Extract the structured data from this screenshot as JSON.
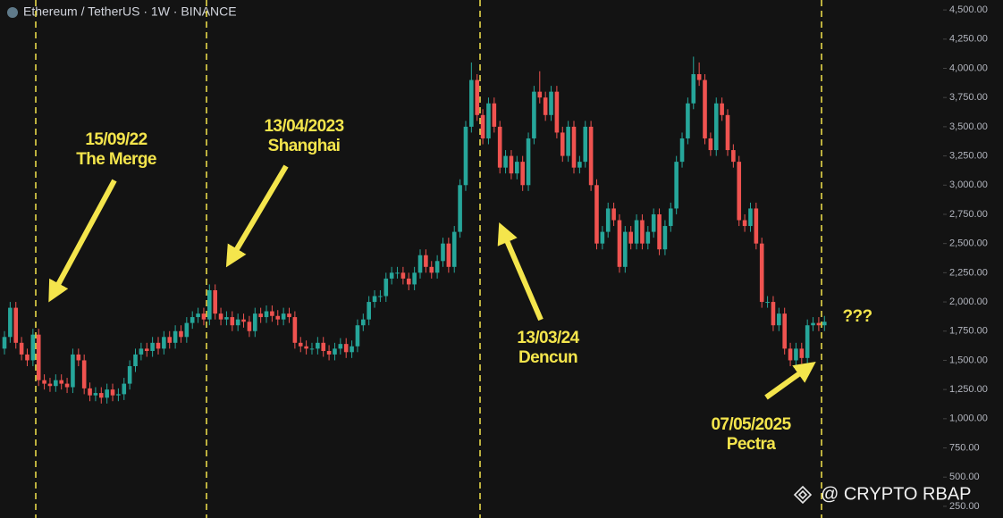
{
  "chart_data": {
    "type": "candlestick",
    "title": "Ethereum / TetherUS · 1W · BINANCE",
    "up_color": "#26a69a",
    "down_color": "#ef5350",
    "open": [
      1600,
      1700,
      1950,
      1650,
      1550,
      1500,
      1720,
      1330,
      1300,
      1280,
      1330,
      1300,
      1270,
      1550,
      1500,
      1260,
      1200,
      1220,
      1180,
      1250,
      1200,
      1210,
      1300,
      1450,
      1550,
      1600,
      1580,
      1650,
      1600,
      1700,
      1650,
      1750,
      1700,
      1820,
      1870,
      1900,
      1850,
      2100,
      1900,
      1850,
      1870,
      1800,
      1850,
      1830,
      1750,
      1900,
      1870,
      1920,
      1880,
      1850,
      1900,
      1870,
      1650,
      1620,
      1600,
      1600,
      1650,
      1580,
      1550,
      1600,
      1640,
      1570,
      1620,
      1800,
      1850,
      2000,
      2050,
      2050,
      2200,
      2250,
      2250,
      2200,
      2150,
      2250,
      2400,
      2300,
      2250,
      2350,
      2500,
      2300,
      2600,
      3000,
      3500,
      3900,
      3600,
      3400,
      3700,
      3500,
      3150,
      3250,
      3100,
      3200,
      3000,
      3400,
      3800,
      3750,
      3600,
      3800,
      3450,
      3250,
      3500,
      3150,
      3200,
      3500,
      3000,
      2500,
      2600,
      2800,
      2700,
      2300,
      2600,
      2500,
      2700,
      2500,
      2600,
      2750,
      2450,
      2650,
      2800,
      3200,
      3400,
      3700,
      3950,
      3900,
      3400,
      3300,
      3700,
      3600,
      3300,
      3200,
      2700,
      2650,
      2800,
      2500,
      2000,
      2000,
      1800,
      1900,
      1600,
      1500,
      1600,
      1520,
      1800,
      1820,
      1800
    ],
    "high": [
      1750,
      2000,
      2000,
      1700,
      1600,
      1770,
      1770,
      1380,
      1350,
      1380,
      1380,
      1350,
      1600,
      1600,
      1550,
      1310,
      1270,
      1270,
      1300,
      1300,
      1260,
      1350,
      1500,
      1600,
      1650,
      1650,
      1700,
      1700,
      1750,
      1750,
      1800,
      1800,
      1870,
      1920,
      1950,
      1950,
      2150,
      2150,
      1950,
      1920,
      1920,
      1900,
      1900,
      1880,
      1950,
      1950,
      1970,
      1970,
      1930,
      1950,
      1950,
      1920,
      1700,
      1670,
      1650,
      1700,
      1700,
      1630,
      1650,
      1690,
      1690,
      1670,
      1850,
      1900,
      2050,
      2100,
      2100,
      2250,
      2300,
      2300,
      2300,
      2250,
      2300,
      2450,
      2450,
      2350,
      2400,
      2550,
      2550,
      2650,
      3050,
      3550,
      4050,
      3950,
      3650,
      3750,
      3750,
      3550,
      3300,
      3300,
      3250,
      3250,
      3450,
      3850,
      3975,
      3800,
      3850,
      3850,
      3500,
      3550,
      3550,
      3250,
      3550,
      3550,
      3050,
      2650,
      2850,
      2850,
      2750,
      2650,
      2650,
      2750,
      2750,
      2650,
      2800,
      2800,
      2700,
      2850,
      3250,
      3450,
      3750,
      4100,
      4050,
      3950,
      3450,
      3750,
      3750,
      3650,
      3350,
      3250,
      2750,
      2850,
      2850,
      2550,
      2050,
      2050,
      1950,
      1950,
      1650,
      1650,
      1650,
      1850,
      1870,
      1870,
      1880
    ],
    "low": [
      1550,
      1650,
      1600,
      1500,
      1450,
      1450,
      1280,
      1250,
      1230,
      1230,
      1250,
      1220,
      1220,
      1450,
      1210,
      1150,
      1150,
      1130,
      1130,
      1150,
      1150,
      1160,
      1250,
      1400,
      1500,
      1530,
      1530,
      1550,
      1550,
      1600,
      1600,
      1650,
      1650,
      1770,
      1820,
      1800,
      1800,
      1850,
      1800,
      1800,
      1750,
      1750,
      1780,
      1700,
      1700,
      1820,
      1820,
      1830,
      1800,
      1800,
      1820,
      1600,
      1570,
      1550,
      1550,
      1550,
      1530,
      1500,
      1500,
      1550,
      1520,
      1520,
      1570,
      1750,
      1800,
      1950,
      2000,
      2000,
      2150,
      2200,
      2150,
      2100,
      2100,
      2200,
      2250,
      2200,
      2200,
      2300,
      2250,
      2250,
      2550,
      2950,
      3450,
      3550,
      3350,
      3350,
      3450,
      3100,
      3100,
      3050,
      3050,
      2950,
      2950,
      3350,
      3700,
      3550,
      3550,
      3400,
      3200,
      3200,
      3100,
      3100,
      3150,
      2950,
      2450,
      2450,
      2550,
      2650,
      2250,
      2250,
      2450,
      2450,
      2450,
      2450,
      2550,
      2400,
      2400,
      2600,
      2750,
      3150,
      3350,
      3650,
      3850,
      3350,
      3250,
      3250,
      3550,
      3250,
      3150,
      2650,
      2600,
      2600,
      2450,
      1950,
      1950,
      1750,
      1750,
      1550,
      1450,
      1450,
      1470,
      1470,
      1750,
      1750,
      1750
    ],
    "close": [
      1700,
      1950,
      1650,
      1550,
      1500,
      1720,
      1330,
      1300,
      1280,
      1330,
      1300,
      1270,
      1550,
      1500,
      1260,
      1200,
      1220,
      1180,
      1250,
      1200,
      1210,
      1300,
      1450,
      1550,
      1600,
      1580,
      1650,
      1600,
      1700,
      1650,
      1750,
      1700,
      1820,
      1870,
      1900,
      1850,
      2100,
      1900,
      1850,
      1870,
      1800,
      1850,
      1830,
      1750,
      1900,
      1870,
      1920,
      1880,
      1850,
      1900,
      1870,
      1650,
      1620,
      1600,
      1600,
      1650,
      1580,
      1550,
      1600,
      1640,
      1570,
      1620,
      1800,
      1850,
      2000,
      2050,
      2050,
      2200,
      2250,
      2250,
      2200,
      2150,
      2250,
      2400,
      2300,
      2250,
      2350,
      2500,
      2300,
      2600,
      3000,
      3500,
      3900,
      3600,
      3400,
      3700,
      3500,
      3150,
      3250,
      3100,
      3200,
      3000,
      3400,
      3800,
      3750,
      3600,
      3800,
      3450,
      3250,
      3500,
      3150,
      3200,
      3500,
      3000,
      2500,
      2600,
      2800,
      2700,
      2300,
      2600,
      2500,
      2700,
      2500,
      2600,
      2750,
      2450,
      2650,
      2800,
      3200,
      3400,
      3700,
      3950,
      3900,
      3400,
      3300,
      3700,
      3600,
      3300,
      3200,
      2700,
      2650,
      2800,
      2500,
      2000,
      2000,
      1800,
      1900,
      1600,
      1500,
      1600,
      1520,
      1800,
      1820,
      1800,
      1830
    ],
    "ylim": [
      150,
      4585
    ],
    "yticks": [
      {
        "value": 4500,
        "label": "4,500.00"
      },
      {
        "value": 4250,
        "label": "4,250.00"
      },
      {
        "value": 4000,
        "label": "4,000.00"
      },
      {
        "value": 3750,
        "label": "3,750.00"
      },
      {
        "value": 3500,
        "label": "3,500.00"
      },
      {
        "value": 3250,
        "label": "3,250.00"
      },
      {
        "value": 3000,
        "label": "3,000.00"
      },
      {
        "value": 2750,
        "label": "2,750.00"
      },
      {
        "value": 2500,
        "label": "2,500.00"
      },
      {
        "value": 2250,
        "label": "2,250.00"
      },
      {
        "value": 2000,
        "label": "2,000.00"
      },
      {
        "value": 1750,
        "label": "1,750.00"
      },
      {
        "value": 1500,
        "label": "1,500.00"
      },
      {
        "value": 1250,
        "label": "1,250.00"
      },
      {
        "value": 1000,
        "label": "1,000.00"
      },
      {
        "value": 750,
        "label": "750.00"
      },
      {
        "value": 500,
        "label": "500.00"
      },
      {
        "value": 250,
        "label": "250.00"
      }
    ],
    "annotations": [
      {
        "date": "15/09/22",
        "label": "The Merge"
      },
      {
        "date": "13/04/2023",
        "label": "Shanghai"
      },
      {
        "date": "13/03/24",
        "label": "Dencun"
      },
      {
        "date": "07/05/2025",
        "label": "Pectra"
      }
    ],
    "note": "???",
    "watermark": "@ CRYPTO RBAP"
  }
}
